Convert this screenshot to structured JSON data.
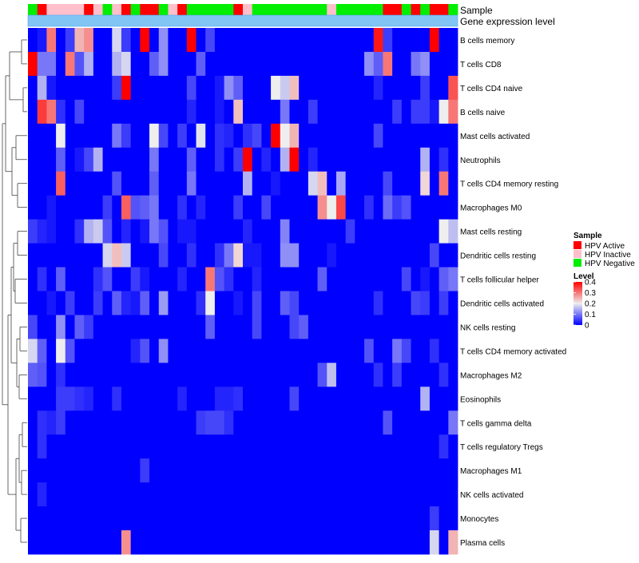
{
  "chart_data": {
    "type": "heatmap",
    "annotation_labels": [
      "Sample",
      "Gene expression level"
    ],
    "sample_groups": [
      "N",
      "A",
      "I",
      "I",
      "I",
      "I",
      "A",
      "I",
      "N",
      "I",
      "A",
      "N",
      "A",
      "A",
      "N",
      "I",
      "A",
      "N",
      "N",
      "N",
      "N",
      "N",
      "A",
      "I",
      "N",
      "N",
      "N",
      "N",
      "N",
      "N",
      "N",
      "N",
      "I",
      "N",
      "N",
      "N",
      "N",
      "N",
      "A",
      "A",
      "N",
      "A",
      "N",
      "A",
      "A",
      "N"
    ],
    "row_labels": [
      "B cells memory",
      "T cells CD8",
      "T cells CD4 naive",
      "B cells naive",
      "Mast cells activated",
      "Neutrophils",
      "T cells CD4 memory resting",
      "Macrophages M0",
      "Mast cells resting",
      "Dendritic cells resting",
      "T cells follicular helper",
      "Dendritic cells activated",
      "NK cells resting",
      "T cells CD4 memory activated",
      "Macrophages M2",
      "Eosinophils",
      "T cells gamma delta",
      "T cells regulatory  Tregs",
      "Macrophages M1",
      "NK cells activated",
      "Monocytes",
      "Plasma cells"
    ],
    "values": [
      [
        0.0,
        0.02,
        0.3,
        0.0,
        0.05,
        0.25,
        0.28,
        0.0,
        0.0,
        0.18,
        0.05,
        0.0,
        0.4,
        0.0,
        0.12,
        0.0,
        0.0,
        0.4,
        0.0,
        0.06,
        0.0,
        0.0,
        0.0,
        0.0,
        0.0,
        0.0,
        0.0,
        0.0,
        0.0,
        0.0,
        0.0,
        0.0,
        0.0,
        0.0,
        0.0,
        0.0,
        0.0,
        0.38,
        0.05,
        0.0,
        0.0,
        0.0,
        0.0,
        0.4,
        0.0,
        0.0
      ],
      [
        0.4,
        0.1,
        0.1,
        0.0,
        0.3,
        0.07,
        0.15,
        0.0,
        0.0,
        0.15,
        0.18,
        0.0,
        0.0,
        0.08,
        0.12,
        0.0,
        0.0,
        0.0,
        0.08,
        0.0,
        0.0,
        0.0,
        0.0,
        0.0,
        0.0,
        0.0,
        0.0,
        0.0,
        0.0,
        0.0,
        0.0,
        0.0,
        0.0,
        0.0,
        0.0,
        0.0,
        0.12,
        0.08,
        0.3,
        0.0,
        0.0,
        0.1,
        0.12,
        0.0,
        0.0,
        0.0
      ],
      [
        0.0,
        0.15,
        0.02,
        0.0,
        0.0,
        0.0,
        0.0,
        0.0,
        0.0,
        0.05,
        0.4,
        0.0,
        0.0,
        0.0,
        0.0,
        0.0,
        0.0,
        0.06,
        0.0,
        0.0,
        0.02,
        0.12,
        0.08,
        0.0,
        0.0,
        0.0,
        0.2,
        0.17,
        0.24,
        0.0,
        0.0,
        0.0,
        0.0,
        0.0,
        0.0,
        0.0,
        0.0,
        0.03,
        0.0,
        0.0,
        0.0,
        0.0,
        0.05,
        0.0,
        0.0,
        0.33
      ],
      [
        0.0,
        0.35,
        0.3,
        0.04,
        0.0,
        0.06,
        0.0,
        0.0,
        0.0,
        0.0,
        0.0,
        0.0,
        0.0,
        0.0,
        0.0,
        0.0,
        0.0,
        0.03,
        0.0,
        0.0,
        0.02,
        0.0,
        0.24,
        0.0,
        0.0,
        0.0,
        0.0,
        0.1,
        0.0,
        0.0,
        0.05,
        0.0,
        0.0,
        0.0,
        0.0,
        0.0,
        0.0,
        0.0,
        0.0,
        0.05,
        0.0,
        0.05,
        0.05,
        0.02,
        0.2,
        0.3
      ],
      [
        0.0,
        0.0,
        0.0,
        0.2,
        0.0,
        0.0,
        0.0,
        0.0,
        0.0,
        0.1,
        0.05,
        0.0,
        0.0,
        0.2,
        0.06,
        0.0,
        0.05,
        0.0,
        0.19,
        0.0,
        0.04,
        0.03,
        0.0,
        0.04,
        0.06,
        0.0,
        0.4,
        0.2,
        0.25,
        0.0,
        0.0,
        0.0,
        0.0,
        0.0,
        0.0,
        0.0,
        0.0,
        0.06,
        0.0,
        0.0,
        0.0,
        0.0,
        0.0,
        0.0,
        0.0,
        0.0
      ],
      [
        0.0,
        0.0,
        0.0,
        0.08,
        0.0,
        0.02,
        0.06,
        0.15,
        0.0,
        0.0,
        0.0,
        0.0,
        0.0,
        0.1,
        0.0,
        0.0,
        0.0,
        0.08,
        0.0,
        0.0,
        0.04,
        0.0,
        0.05,
        0.4,
        0.0,
        0.03,
        0.0,
        0.15,
        0.4,
        0.0,
        0.03,
        0.0,
        0.0,
        0.0,
        0.0,
        0.0,
        0.0,
        0.0,
        0.0,
        0.0,
        0.0,
        0.0,
        0.15,
        0.0,
        0.04,
        0.0
      ],
      [
        0.0,
        0.0,
        0.0,
        0.32,
        0.0,
        0.0,
        0.0,
        0.0,
        0.0,
        0.07,
        0.0,
        0.0,
        0.0,
        0.08,
        0.0,
        0.0,
        0.0,
        0.1,
        0.0,
        0.0,
        0.0,
        0.0,
        0.0,
        0.15,
        0.0,
        0.0,
        0.02,
        0.0,
        0.0,
        0.0,
        0.18,
        0.24,
        0.0,
        0.14,
        0.0,
        0.0,
        0.0,
        0.0,
        0.06,
        0.0,
        0.0,
        0.0,
        0.22,
        0.0,
        0.3,
        0.0
      ],
      [
        0.0,
        0.0,
        0.02,
        0.0,
        0.0,
        0.0,
        0.0,
        0.0,
        0.05,
        0.0,
        0.32,
        0.07,
        0.08,
        0.1,
        0.0,
        0.0,
        0.04,
        0.0,
        0.03,
        0.0,
        0.0,
        0.0,
        0.05,
        0.0,
        0.0,
        0.06,
        0.0,
        0.0,
        0.0,
        0.0,
        0.0,
        0.28,
        0.2,
        0.34,
        0.0,
        0.0,
        0.04,
        0.0,
        0.09,
        0.05,
        0.07,
        0.0,
        0.0,
        0.0,
        0.0,
        0.0
      ],
      [
        0.05,
        0.03,
        0.02,
        0.0,
        0.0,
        0.04,
        0.15,
        0.17,
        0.07,
        0.0,
        0.03,
        0.0,
        0.02,
        0.1,
        0.07,
        0.0,
        0.02,
        0.02,
        0.0,
        0.0,
        0.0,
        0.0,
        0.0,
        0.03,
        0.0,
        0.0,
        0.0,
        0.11,
        0.0,
        0.0,
        0.0,
        0.0,
        0.0,
        0.0,
        0.05,
        0.0,
        0.0,
        0.0,
        0.0,
        0.0,
        0.0,
        0.0,
        0.0,
        0.0,
        0.2,
        0.16
      ],
      [
        0.0,
        0.0,
        0.0,
        0.0,
        0.0,
        0.0,
        0.0,
        0.0,
        0.18,
        0.24,
        0.17,
        0.0,
        0.0,
        0.0,
        0.06,
        0.0,
        0.0,
        0.04,
        0.0,
        0.0,
        0.04,
        0.1,
        0.22,
        0.02,
        0.02,
        0.0,
        0.0,
        0.12,
        0.12,
        0.0,
        0.0,
        0.0,
        0.02,
        0.0,
        0.0,
        0.0,
        0.0,
        0.0,
        0.0,
        0.0,
        0.0,
        0.0,
        0.0,
        0.06,
        0.0,
        0.0
      ],
      [
        0.0,
        0.04,
        0.0,
        0.08,
        0.0,
        0.0,
        0.0,
        0.04,
        0.07,
        0.0,
        0.0,
        0.05,
        0.02,
        0.0,
        0.0,
        0.0,
        0.03,
        0.0,
        0.0,
        0.3,
        0.07,
        0.04,
        0.0,
        0.0,
        0.03,
        0.0,
        0.0,
        0.0,
        0.0,
        0.0,
        0.0,
        0.08,
        0.0,
        0.0,
        0.0,
        0.0,
        0.0,
        0.0,
        0.0,
        0.0,
        0.06,
        0.0,
        0.02,
        0.0,
        0.08,
        0.1
      ],
      [
        0.0,
        0.0,
        0.02,
        0.0,
        0.05,
        0.0,
        0.0,
        0.05,
        0.0,
        0.08,
        0.03,
        0.02,
        0.08,
        0.0,
        0.13,
        0.0,
        0.0,
        0.0,
        0.04,
        0.2,
        0.0,
        0.0,
        0.02,
        0.0,
        0.06,
        0.0,
        0.0,
        0.08,
        0.06,
        0.0,
        0.0,
        0.0,
        0.0,
        0.0,
        0.0,
        0.0,
        0.0,
        0.04,
        0.0,
        0.0,
        0.0,
        0.06,
        0.05,
        0.0,
        0.05,
        0.0
      ],
      [
        0.06,
        0.0,
        0.0,
        0.12,
        0.0,
        0.08,
        0.05,
        0.0,
        0.0,
        0.0,
        0.0,
        0.0,
        0.0,
        0.0,
        0.0,
        0.0,
        0.0,
        0.0,
        0.0,
        0.08,
        0.0,
        0.0,
        0.0,
        0.0,
        0.06,
        0.0,
        0.0,
        0.0,
        0.06,
        0.08,
        0.0,
        0.0,
        0.0,
        0.0,
        0.0,
        0.0,
        0.0,
        0.0,
        0.0,
        0.0,
        0.0,
        0.0,
        0.0,
        0.0,
        0.0,
        0.0
      ],
      [
        0.18,
        0.08,
        0.0,
        0.2,
        0.07,
        0.0,
        0.0,
        0.0,
        0.0,
        0.0,
        0.0,
        0.03,
        0.07,
        0.0,
        0.12,
        0.0,
        0.0,
        0.0,
        0.0,
        0.0,
        0.0,
        0.0,
        0.0,
        0.0,
        0.0,
        0.0,
        0.0,
        0.0,
        0.0,
        0.0,
        0.0,
        0.0,
        0.0,
        0.0,
        0.0,
        0.0,
        0.07,
        0.0,
        0.0,
        0.1,
        0.06,
        0.0,
        0.0,
        0.04,
        0.0,
        0.0
      ],
      [
        0.08,
        0.07,
        0.0,
        0.04,
        0.0,
        0.0,
        0.0,
        0.0,
        0.0,
        0.0,
        0.0,
        0.0,
        0.0,
        0.0,
        0.0,
        0.0,
        0.0,
        0.0,
        0.0,
        0.0,
        0.0,
        0.0,
        0.0,
        0.0,
        0.0,
        0.0,
        0.0,
        0.0,
        0.0,
        0.0,
        0.0,
        0.07,
        0.16,
        0.0,
        0.0,
        0.0,
        0.0,
        0.04,
        0.0,
        0.05,
        0.0,
        0.0,
        0.0,
        0.0,
        0.04,
        0.0
      ],
      [
        0.0,
        0.0,
        0.0,
        0.05,
        0.05,
        0.04,
        0.03,
        0.0,
        0.0,
        0.04,
        0.0,
        0.0,
        0.0,
        0.0,
        0.0,
        0.0,
        0.03,
        0.0,
        0.0,
        0.0,
        0.03,
        0.03,
        0.04,
        0.0,
        0.0,
        0.0,
        0.0,
        0.0,
        0.06,
        0.0,
        0.0,
        0.0,
        0.0,
        0.0,
        0.0,
        0.0,
        0.0,
        0.0,
        0.0,
        0.0,
        0.0,
        0.0,
        0.15,
        0.0,
        0.0,
        0.0
      ],
      [
        0.0,
        0.04,
        0.03,
        0.05,
        0.0,
        0.0,
        0.0,
        0.0,
        0.0,
        0.0,
        0.0,
        0.0,
        0.0,
        0.0,
        0.0,
        0.0,
        0.0,
        0.0,
        0.05,
        0.06,
        0.06,
        0.04,
        0.0,
        0.0,
        0.0,
        0.0,
        0.0,
        0.0,
        0.0,
        0.0,
        0.0,
        0.0,
        0.0,
        0.0,
        0.0,
        0.0,
        0.0,
        0.0,
        0.07,
        0.0,
        0.0,
        0.0,
        0.0,
        0.0,
        0.0,
        0.1
      ],
      [
        0.0,
        0.04,
        0.0,
        0.0,
        0.0,
        0.0,
        0.0,
        0.0,
        0.0,
        0.0,
        0.0,
        0.0,
        0.0,
        0.0,
        0.0,
        0.0,
        0.0,
        0.0,
        0.0,
        0.0,
        0.0,
        0.0,
        0.0,
        0.0,
        0.0,
        0.0,
        0.0,
        0.0,
        0.0,
        0.0,
        0.0,
        0.0,
        0.0,
        0.0,
        0.0,
        0.0,
        0.0,
        0.0,
        0.0,
        0.0,
        0.0,
        0.0,
        0.0,
        0.0,
        0.04,
        0.0
      ],
      [
        0.0,
        0.0,
        0.0,
        0.0,
        0.0,
        0.0,
        0.0,
        0.0,
        0.0,
        0.0,
        0.0,
        0.0,
        0.05,
        0.0,
        0.0,
        0.0,
        0.0,
        0.0,
        0.0,
        0.0,
        0.0,
        0.0,
        0.0,
        0.0,
        0.0,
        0.0,
        0.0,
        0.0,
        0.0,
        0.0,
        0.0,
        0.0,
        0.0,
        0.0,
        0.0,
        0.0,
        0.0,
        0.0,
        0.0,
        0.0,
        0.0,
        0.0,
        0.0,
        0.0,
        0.0,
        0.0
      ],
      [
        0.0,
        0.03,
        0.0,
        0.0,
        0.0,
        0.0,
        0.0,
        0.0,
        0.0,
        0.0,
        0.0,
        0.0,
        0.0,
        0.0,
        0.0,
        0.0,
        0.0,
        0.0,
        0.0,
        0.0,
        0.0,
        0.0,
        0.0,
        0.0,
        0.0,
        0.0,
        0.0,
        0.0,
        0.0,
        0.0,
        0.0,
        0.0,
        0.0,
        0.0,
        0.0,
        0.0,
        0.0,
        0.0,
        0.0,
        0.0,
        0.0,
        0.0,
        0.0,
        0.0,
        0.0,
        0.0
      ],
      [
        0.0,
        0.0,
        0.0,
        0.0,
        0.0,
        0.0,
        0.0,
        0.0,
        0.0,
        0.0,
        0.0,
        0.0,
        0.0,
        0.0,
        0.0,
        0.0,
        0.0,
        0.0,
        0.0,
        0.0,
        0.0,
        0.0,
        0.0,
        0.0,
        0.0,
        0.0,
        0.0,
        0.0,
        0.0,
        0.0,
        0.0,
        0.0,
        0.0,
        0.0,
        0.0,
        0.0,
        0.0,
        0.0,
        0.0,
        0.0,
        0.0,
        0.0,
        0.0,
        0.05,
        0.0,
        0.0
      ],
      [
        0.0,
        0.0,
        0.0,
        0.0,
        0.0,
        0.0,
        0.0,
        0.0,
        0.0,
        0.0,
        0.28,
        0.0,
        0.0,
        0.0,
        0.0,
        0.0,
        0.0,
        0.0,
        0.0,
        0.0,
        0.0,
        0.0,
        0.0,
        0.0,
        0.0,
        0.0,
        0.0,
        0.0,
        0.0,
        0.0,
        0.0,
        0.0,
        0.0,
        0.0,
        0.0,
        0.0,
        0.0,
        0.0,
        0.0,
        0.0,
        0.0,
        0.0,
        0.0,
        0.18,
        0.0,
        0.25
      ]
    ],
    "color_scale": {
      "min": 0,
      "max": 0.4,
      "low": "#0000FF",
      "mid": "#EEEEEE",
      "high": "#FF0000"
    },
    "expression_bar": {
      "fill": "#81C5F5",
      "edge": "#4DA6F0"
    },
    "legend": {
      "title": "Sample",
      "entries": [
        {
          "key": "A",
          "label": "HPV Active",
          "color": "#FF0000"
        },
        {
          "key": "I",
          "label": "HPV Inactive",
          "color": "#FFC0CB"
        },
        {
          "key": "N",
          "label": "HPV Negative",
          "color": "#00EE00"
        }
      ],
      "level_title": "Level",
      "level_ticks": [
        {
          "value": 0.4,
          "label": "0.4"
        },
        {
          "value": 0.3,
          "label": "0.3"
        },
        {
          "value": 0.2,
          "label": "0.2"
        },
        {
          "value": 0.1,
          "label": "0.1"
        },
        {
          "value": 0,
          "label": "0"
        }
      ]
    }
  }
}
